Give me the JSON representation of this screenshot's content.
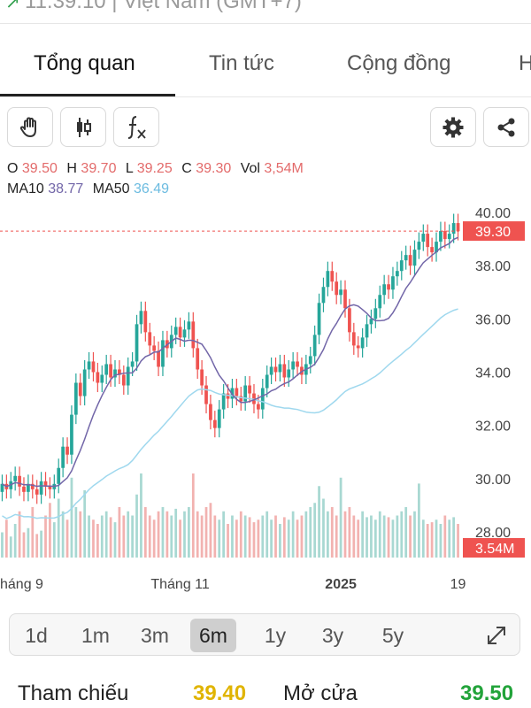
{
  "header": {
    "partial_text": "11:39:10 | Việt Nam (GMT+7)"
  },
  "tabs": [
    {
      "label": "Tổng quan",
      "active": true
    },
    {
      "label": "Tin tức",
      "active": false
    },
    {
      "label": "Cộng đồng",
      "active": false
    },
    {
      "label": "H",
      "active": false
    }
  ],
  "toolbar": {
    "left": [
      {
        "icon": "hand-icon"
      },
      {
        "icon": "candlestick-icon"
      },
      {
        "icon": "function-fx-icon"
      }
    ],
    "right": [
      {
        "icon": "gear-icon"
      },
      {
        "icon": "share-icon"
      }
    ]
  },
  "ohlc": {
    "o_label": "O",
    "o": "39.50",
    "h_label": "H",
    "h": "39.70",
    "l_label": "L",
    "l": "39.25",
    "c_label": "C",
    "c": "39.30",
    "vol_label": "Vol",
    "vol": "3,54M"
  },
  "ma": {
    "ma10_label": "MA10",
    "ma10": "38.77",
    "ma50_label": "MA50",
    "ma50": "36.49"
  },
  "chart_data": {
    "type": "candlestick",
    "y_ticks": [
      "40.00",
      "38.00",
      "36.00",
      "34.00",
      "32.00",
      "30.00",
      "28.00"
    ],
    "ylim": [
      27.2,
      40.3
    ],
    "x_ticks": [
      {
        "label": "háng 9",
        "index": 0
      },
      {
        "label": "Tháng 11",
        "index": 41
      },
      {
        "label": "2025",
        "index": 78
      },
      {
        "label": "19",
        "index": 105
      }
    ],
    "current_price_label": "39.30",
    "current_volume_label": "3.54M",
    "colors": {
      "up": "#26a69a",
      "down": "#ef5350",
      "ma10": "#7266a8",
      "ma50": "#9fd8ee",
      "price_line": "#ef5350"
    },
    "closes": [
      29.8,
      29.6,
      29.9,
      30.1,
      29.7,
      29.5,
      29.8,
      29.6,
      29.4,
      29.9,
      29.7,
      29.6,
      29.8,
      30.4,
      31.2,
      30.9,
      32.4,
      33.6,
      33.1,
      34.1,
      34.4,
      34.0,
      33.6,
      33.9,
      34.3,
      33.8,
      34.1,
      33.9,
      33.5,
      34.2,
      34.4,
      35.8,
      36.3,
      35.5,
      35.0,
      34.8,
      34.2,
      35.2,
      34.9,
      35.4,
      35.7,
      35.3,
      35.6,
      35.9,
      34.9,
      34.1,
      33.5,
      32.8,
      32.2,
      31.9,
      32.6,
      33.2,
      33.0,
      33.4,
      33.1,
      32.9,
      33.5,
      33.2,
      32.8,
      32.6,
      33.4,
      33.9,
      34.2,
      34.0,
      34.3,
      33.8,
      34.1,
      34.4,
      34.2,
      33.9,
      34.3,
      34.6,
      35.4,
      36.6,
      37.2,
      37.8,
      37.4,
      36.9,
      37.1,
      36.4,
      35.5,
      35.0,
      34.9,
      35.3,
      35.8,
      36.0,
      36.4,
      36.9,
      37.3,
      37.1,
      37.6,
      37.8,
      38.2,
      38.4,
      38.0,
      38.6,
      38.9,
      39.2,
      38.7,
      38.5,
      38.9,
      39.3,
      39.0,
      39.2,
      39.6,
      39.3
    ],
    "volumes": [
      0.3,
      0.45,
      0.25,
      0.4,
      0.55,
      0.3,
      0.35,
      0.6,
      0.28,
      0.32,
      0.5,
      0.65,
      0.42,
      0.7,
      0.55,
      0.45,
      0.95,
      0.6,
      0.55,
      0.8,
      0.5,
      0.45,
      0.4,
      0.5,
      0.55,
      0.48,
      0.42,
      0.6,
      0.5,
      0.55,
      0.5,
      0.75,
      1.0,
      0.6,
      0.5,
      0.45,
      0.55,
      0.6,
      0.55,
      0.5,
      0.58,
      0.45,
      0.55,
      0.6,
      1.0,
      0.55,
      0.5,
      0.6,
      0.65,
      0.5,
      0.45,
      0.55,
      0.4,
      0.5,
      0.45,
      0.55,
      0.5,
      0.48,
      0.42,
      0.45,
      0.5,
      0.55,
      0.45,
      0.5,
      0.4,
      0.48,
      0.45,
      0.55,
      0.45,
      0.5,
      0.55,
      0.6,
      0.65,
      0.85,
      0.7,
      0.55,
      0.6,
      0.5,
      0.95,
      0.55,
      0.6,
      0.5,
      0.45,
      0.55,
      0.48,
      0.5,
      0.45,
      0.55,
      0.5,
      0.48,
      0.45,
      0.5,
      0.55,
      0.6,
      0.5,
      0.55,
      0.88,
      0.45,
      0.4,
      0.42,
      0.45,
      0.4,
      0.5,
      0.45,
      0.48,
      0.4
    ]
  },
  "range_selector": {
    "options": [
      "1d",
      "1m",
      "3m",
      "6m",
      "1y",
      "3y",
      "5y"
    ],
    "selected": "6m"
  },
  "stats": {
    "ref_label": "Tham chiếu",
    "ref_value": "39.40",
    "ref_color": "#e0b400",
    "open_label": "Mở cửa",
    "open_value": "39.50",
    "open_color": "#22a33a"
  }
}
